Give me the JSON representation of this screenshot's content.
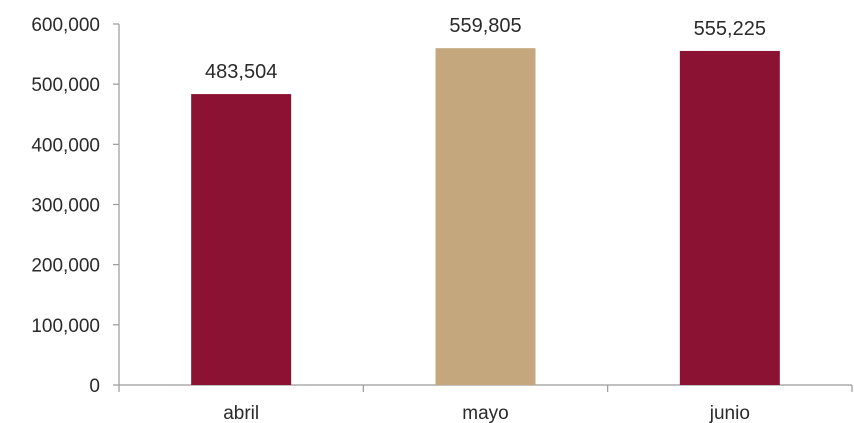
{
  "chart_data": {
    "type": "bar",
    "categories": [
      "abril",
      "mayo",
      "junio"
    ],
    "values": [
      483504,
      559805,
      555225
    ],
    "data_labels": [
      "483,504",
      "559,805",
      "555,225"
    ],
    "bar_colors": [
      "#8b1232",
      "#c4a77d",
      "#8b1232"
    ],
    "ylim": [
      0,
      600000
    ],
    "yticks": [
      0,
      100000,
      200000,
      300000,
      400000,
      500000,
      600000
    ],
    "ytick_labels": [
      "0",
      "100,000",
      "200,000",
      "300,000",
      "400,000",
      "500,000",
      "600,000"
    ],
    "grid": false,
    "title": "",
    "xlabel": "",
    "ylabel": ""
  }
}
